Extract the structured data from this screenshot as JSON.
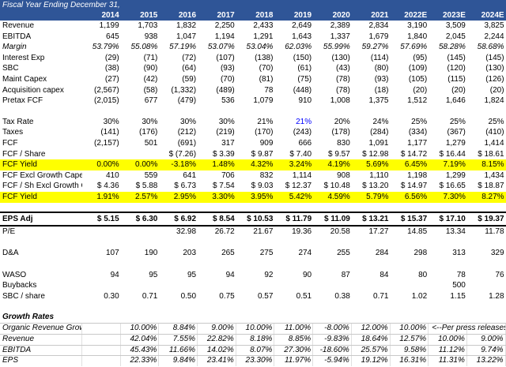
{
  "header": {
    "title": "Fiscal Year Ending December 31,",
    "years": [
      "2014",
      "2015",
      "2016",
      "2017",
      "2018",
      "2019",
      "2020",
      "2021",
      "2022E",
      "2023E",
      "2024E"
    ]
  },
  "sections": [
    {
      "rows": [
        {
          "label": "Revenue",
          "cells": [
            "1,199",
            "1,703",
            "1,832",
            "2,250",
            "2,433",
            "2,649",
            "2,389",
            "2,834",
            "3,190",
            "3,509",
            "3,825"
          ]
        },
        {
          "label": "EBITDA",
          "cells": [
            "645",
            "938",
            "1,047",
            "1,194",
            "1,291",
            "1,643",
            "1,337",
            "1,679",
            "1,840",
            "2,045",
            "2,244"
          ]
        },
        {
          "label": "Margin",
          "style": "italic",
          "cells": [
            "53.79%",
            "55.08%",
            "57.19%",
            "53.07%",
            "53.04%",
            "62.03%",
            "55.99%",
            "59.27%",
            "57.69%",
            "58.28%",
            "58.68%"
          ]
        },
        {
          "label": "Interest Exp",
          "cells": [
            "(29)",
            "(71)",
            "(72)",
            "(107)",
            "(138)",
            "(150)",
            "(130)",
            "(114)",
            "(95)",
            "(145)",
            "(145)"
          ]
        },
        {
          "label": "SBC",
          "cells": [
            "(38)",
            "(90)",
            "(64)",
            "(93)",
            "(70)",
            "(61)",
            "(43)",
            "(80)",
            "(109)",
            "(120)",
            "(130)"
          ]
        },
        {
          "label": "Maint Capex",
          "cells": [
            "(27)",
            "(42)",
            "(59)",
            "(70)",
            "(81)",
            "(75)",
            "(78)",
            "(93)",
            "(105)",
            "(115)",
            "(126)"
          ]
        },
        {
          "label": "Acquisition capex",
          "cells": [
            "(2,567)",
            "(58)",
            "(1,332)",
            "(489)",
            "78",
            "(448)",
            "(78)",
            "(18)",
            "(20)",
            "(20)",
            "(20)"
          ]
        },
        {
          "label": "Pretax FCF",
          "cells": [
            "(2,015)",
            "677",
            "(479)",
            "536",
            "1,079",
            "910",
            "1,008",
            "1,375",
            "1,512",
            "1,646",
            "1,824"
          ]
        }
      ]
    },
    {
      "rows": [
        {
          "label": "Tax Rate",
          "cells": [
            "30%",
            "30%",
            "30%",
            "30%",
            "21%",
            "21%",
            "20%",
            "24%",
            "25%",
            "25%",
            "25%"
          ],
          "cell_colors": [
            null,
            null,
            null,
            null,
            null,
            "#0000ff",
            null,
            null,
            null,
            null,
            null
          ]
        },
        {
          "label": "Taxes",
          "cells": [
            "(141)",
            "(176)",
            "(212)",
            "(219)",
            "(170)",
            "(243)",
            "(178)",
            "(284)",
            "(334)",
            "(367)",
            "(410)"
          ]
        },
        {
          "label": "FCF",
          "cells": [
            "(2,157)",
            "501",
            "(691)",
            "317",
            "909",
            "666",
            "830",
            "1,091",
            "1,177",
            "1,279",
            "1,414"
          ]
        },
        {
          "label": "FCF / Share",
          "cells": [
            null,
            null,
            "$ (7.26)",
            "$ 3.39",
            "$ 9.87",
            "$ 7.40",
            "$ 9.57",
            "$ 12.98",
            "$ 14.72",
            "$ 16.44",
            "$ 18.61"
          ]
        },
        {
          "label": "FCF Yield",
          "style": "highlight",
          "cells": [
            "0.00%",
            "0.00%",
            "-3.18%",
            "1.48%",
            "4.32%",
            "3.24%",
            "4.19%",
            "5.69%",
            "6.45%",
            "7.19%",
            "8.15%"
          ]
        },
        {
          "label": "FCF Excl Growth Capex",
          "cells": [
            "410",
            "559",
            "641",
            "706",
            "832",
            "1,114",
            "908",
            "1,110",
            "1,198",
            "1,299",
            "1,434"
          ]
        },
        {
          "label": "FCF / Sh Excl Growth Cape",
          "cells": [
            "$ 4.36",
            "$ 5.88",
            "$ 6.73",
            "$ 7.54",
            "$ 9.03",
            "$ 12.37",
            "$ 10.48",
            "$ 13.20",
            "$ 14.97",
            "$ 16.65",
            "$ 18.87"
          ]
        },
        {
          "label": "FCF Yield",
          "style": "highlight",
          "cells": [
            "1.91%",
            "2.57%",
            "2.95%",
            "3.30%",
            "3.95%",
            "5.42%",
            "4.59%",
            "5.79%",
            "6.56%",
            "7.30%",
            "8.27%"
          ]
        }
      ]
    },
    {
      "rows": [
        {
          "label": "EPS Adj",
          "style": "bold-box",
          "cells": [
            "$ 5.15",
            "$ 6.30",
            "$ 6.92",
            "$ 8.54",
            "$ 10.53",
            "$ 11.79",
            "$ 11.09",
            "$ 13.21",
            "$ 15.37",
            "$ 17.10",
            "$ 19.37"
          ]
        },
        {
          "label": "P/E",
          "cells": [
            null,
            null,
            "32.98",
            "26.72",
            "21.67",
            "19.36",
            "20.58",
            "17.27",
            "14.85",
            "13.34",
            "11.78"
          ]
        }
      ]
    },
    {
      "rows": [
        {
          "label": "D&A",
          "cells": [
            "107",
            "190",
            "203",
            "265",
            "275",
            "274",
            "255",
            "284",
            "298",
            "313",
            "329"
          ]
        }
      ]
    },
    {
      "rows": [
        {
          "label": "WASO",
          "cells": [
            "94",
            "95",
            "95",
            "94",
            "92",
            "90",
            "87",
            "84",
            "80",
            "78",
            "76"
          ]
        },
        {
          "label": "Buybacks",
          "cells": [
            null,
            null,
            null,
            null,
            null,
            null,
            null,
            null,
            null,
            "500",
            null
          ]
        },
        {
          "label": "SBC / share",
          "cells": [
            "0.30",
            "0.71",
            "0.50",
            "0.75",
            "0.57",
            "0.51",
            "0.38",
            "0.71",
            "1.02",
            "1.15",
            "1.28"
          ]
        }
      ]
    },
    {
      "title": "Growth Rates",
      "style": "grid",
      "rows": [
        {
          "label": "Organic Revenue Growth",
          "style": "italic",
          "cells": [
            null,
            "10.00%",
            "8.84%",
            "9.00%",
            "10.00%",
            "11.00%",
            "-8.00%",
            "12.00%",
            "10.00%",
            "<--Per press releases",
            null
          ]
        },
        {
          "label": "Revenue",
          "style": "italic",
          "cells": [
            null,
            "42.04%",
            "7.55%",
            "22.82%",
            "8.18%",
            "8.85%",
            "-9.83%",
            "18.64%",
            "12.57%",
            "10.00%",
            "9.00%"
          ]
        },
        {
          "label": "EBITDA",
          "style": "italic",
          "cells": [
            null,
            "45.43%",
            "11.66%",
            "14.02%",
            "8.07%",
            "27.30%",
            "-18.60%",
            "25.57%",
            "9.58%",
            "11.12%",
            "9.74%"
          ]
        },
        {
          "label": "EPS",
          "style": "italic",
          "cells": [
            null,
            "22.33%",
            "9.84%",
            "23.41%",
            "23.30%",
            "11.97%",
            "-5.94%",
            "19.12%",
            "16.31%",
            "11.31%",
            "13.22%"
          ]
        }
      ]
    }
  ]
}
